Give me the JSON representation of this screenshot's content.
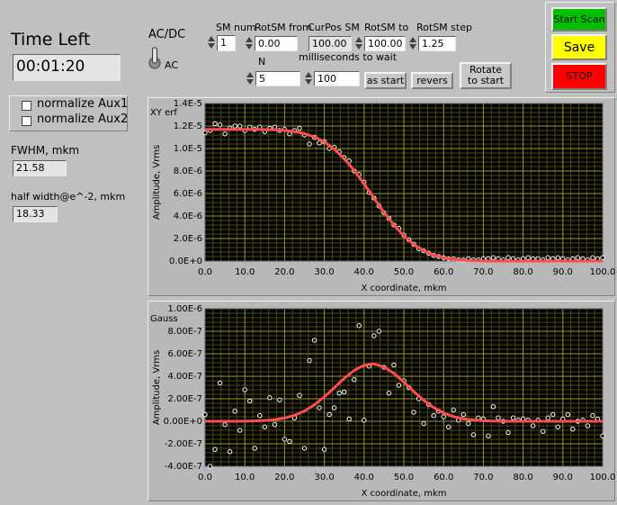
{
  "time_left": {
    "label": "Time Left",
    "value": "00:01:20"
  },
  "checkboxes": [
    {
      "label": "normalize Aux1",
      "checked": false
    },
    {
      "label": "normalize Aux2",
      "checked": false
    }
  ],
  "fwhm": {
    "label": "FWHM, mkm",
    "value": "21.58"
  },
  "half_width": {
    "label": "half width@e^-2, mkm",
    "value": "18.33"
  },
  "acdc": {
    "label": "AC/DC",
    "state": "AC"
  },
  "controls": {
    "sm_num": {
      "label": "SM num",
      "value": "1"
    },
    "rotsm_from": {
      "label": "RotSM from",
      "value": "0.00"
    },
    "curpos_sm": {
      "label": "CurPos SM",
      "value": "100.00"
    },
    "rotsm_to": {
      "label": "RotSM to",
      "value": "100.00"
    },
    "rotsm_step": {
      "label": "RotSM step",
      "value": "1.25"
    },
    "n": {
      "label": "N",
      "value": "5"
    },
    "ms_wait": {
      "label": "milliseconds to wait",
      "value": "100"
    }
  },
  "buttons": {
    "as_start": "as start",
    "revers": "revers",
    "rotate": "Rotate to start"
  },
  "run_buttons": [
    {
      "label": "Start Scan",
      "color": "#00c000"
    },
    {
      "label": "Save",
      "color": "#ffff00"
    },
    {
      "label": "STOP",
      "color": "#ff0000"
    }
  ],
  "chart_data": [
    {
      "type": "scatter",
      "title": "XY erf",
      "xlabel": "X coordinate, mkm",
      "ylabel": "Amplitude, Vrms",
      "xlim": [
        0,
        100
      ],
      "ylim": [
        0,
        1.4e-05
      ],
      "grid": true,
      "minor_grid": 5,
      "xticks": [
        {
          "value": 0,
          "label": "0.0"
        },
        {
          "value": 10,
          "label": "10.0"
        },
        {
          "value": 20,
          "label": "20.0"
        },
        {
          "value": 30,
          "label": "30.0"
        },
        {
          "value": 40,
          "label": "40.0"
        },
        {
          "value": 50,
          "label": "50.0"
        },
        {
          "value": 60,
          "label": "60.0"
        },
        {
          "value": 70,
          "label": "70.0"
        },
        {
          "value": 80,
          "label": "80.0"
        },
        {
          "value": 90,
          "label": "90.0"
        },
        {
          "value": 100,
          "label": "100.0"
        }
      ],
      "yticks": [
        {
          "value": 0,
          "label": "0.0E+0"
        },
        {
          "value": 2e-06,
          "label": "2.0E-6"
        },
        {
          "value": 4e-06,
          "label": "4.0E-6"
        },
        {
          "value": 6e-06,
          "label": "6.0E-6"
        },
        {
          "value": 8e-06,
          "label": "8.0E-6"
        },
        {
          "value": 1e-05,
          "label": "1.0E-5"
        },
        {
          "value": 1.2e-05,
          "label": "1.2E-5"
        },
        {
          "value": 1.4e-05,
          "label": "1.4E-5"
        }
      ],
      "series": [
        {
          "type": "scatter",
          "color": "#ffffff",
          "x": [
            0,
            1.25,
            2.5,
            3.75,
            5,
            6.25,
            7.5,
            8.75,
            10,
            11.25,
            12.5,
            13.75,
            15,
            16.25,
            17.5,
            18.75,
            20,
            21.25,
            22.5,
            23.75,
            25,
            26.25,
            27.5,
            28.75,
            30,
            31.25,
            32.5,
            33.75,
            35,
            36.25,
            37.5,
            38.75,
            40,
            41.25,
            42.5,
            43.75,
            45,
            46.25,
            47.5,
            48.75,
            50,
            51.25,
            52.5,
            53.75,
            55,
            56.25,
            57.5,
            58.75,
            60,
            61.25,
            62.5,
            63.75,
            65,
            66.25,
            67.5,
            68.75,
            70,
            71.25,
            72.5,
            73.75,
            75,
            76.25,
            77.5,
            78.75,
            80,
            81.25,
            82.5,
            83.75,
            85,
            86.25,
            87.5,
            88.75,
            90,
            91.25,
            92.5,
            93.75,
            95,
            96.25,
            97.5,
            98.75,
            100
          ],
          "values": [
            1.14e-05,
            1.16e-05,
            1.22e-05,
            1.21e-05,
            1.13e-05,
            1.18e-05,
            1.2e-05,
            1.2e-05,
            1.16e-05,
            1.19e-05,
            1.17e-05,
            1.19e-05,
            1.15e-05,
            1.18e-05,
            1.19e-05,
            1.16e-05,
            1.17e-05,
            1.13e-05,
            1.16e-05,
            1.18e-05,
            1.12e-05,
            1.04e-05,
            1.1e-05,
            1.05e-05,
            1.06e-05,
            1e-05,
            1.01e-05,
            9.7e-06,
            9.2e-06,
            8.9e-06,
            8e-06,
            7.7e-06,
            7e-06,
            6.1e-06,
            5.6e-06,
            4.9e-06,
            4.3e-06,
            3.8e-06,
            3.2e-06,
            2.9e-06,
            2.3e-06,
            1.9e-06,
            1.5e-06,
            1.1e-06,
            9e-07,
            7e-07,
            5e-07,
            4e-07,
            3e-07,
            2e-07,
            2e-07,
            1e-07,
            1e-07,
            2e-07,
            1e-07,
            1e-07,
            2e-07,
            2e-07,
            3e-07,
            2e-07,
            1e-07,
            3e-07,
            2e-07,
            1e-07,
            2e-07,
            3e-07,
            2e-07,
            2e-07,
            1e-07,
            3e-07,
            2e-07,
            3e-07,
            2e-07,
            1e-07,
            2e-07,
            3e-07,
            2e-07,
            1e-07,
            3e-07,
            2e-07,
            3e-07
          ]
        },
        {
          "type": "line",
          "color": "#ff4d4d",
          "x": [
            0,
            2.5,
            5,
            7.5,
            10,
            12.5,
            15,
            17.5,
            20,
            22.5,
            25,
            27.5,
            30,
            32.5,
            35,
            37.5,
            40,
            42.5,
            45,
            47.5,
            50,
            52.5,
            55,
            57.5,
            60,
            62.5,
            65,
            67.5,
            70,
            72.5,
            75,
            77.5,
            80,
            82.5,
            85,
            87.5,
            90,
            92.5,
            95,
            97.5,
            100
          ],
          "values": [
            1.17e-05,
            1.17e-05,
            1.17e-05,
            1.17e-05,
            1.17e-05,
            1.169e-05,
            1.168e-05,
            1.166e-05,
            1.16e-05,
            1.151e-05,
            1.133e-05,
            1.104e-05,
            1.059e-05,
            9.95e-06,
            9.1e-06,
            8.05e-06,
            6.86e-06,
            5.59e-06,
            4.35e-06,
            3.21e-06,
            2.24e-06,
            1.47e-06,
            9.1e-07,
            5.3e-07,
            2.9e-07,
            1.5e-07,
            7e-08,
            3e-08,
            1e-08,
            0,
            0,
            0,
            0,
            0,
            0,
            0,
            0,
            0,
            0,
            0,
            0
          ]
        }
      ]
    },
    {
      "type": "scatter",
      "title": "Gauss",
      "xlabel": "X coordinate, mkm",
      "ylabel": "Amplitude, Vrms",
      "xlim": [
        0,
        100
      ],
      "ylim": [
        -4e-07,
        1e-06
      ],
      "grid": true,
      "minor_grid": 5,
      "xticks": [
        {
          "value": 0,
          "label": "0.0"
        },
        {
          "value": 10,
          "label": "10.0"
        },
        {
          "value": 20,
          "label": "20.0"
        },
        {
          "value": 30,
          "label": "30.0"
        },
        {
          "value": 40,
          "label": "40.0"
        },
        {
          "value": 50,
          "label": "50.0"
        },
        {
          "value": 60,
          "label": "60.0"
        },
        {
          "value": 70,
          "label": "70.0"
        },
        {
          "value": 80,
          "label": "80.0"
        },
        {
          "value": 90,
          "label": "90.0"
        },
        {
          "value": 100,
          "label": "100.0"
        }
      ],
      "yticks": [
        {
          "value": -4e-07,
          "label": "-4.00E-7"
        },
        {
          "value": -2e-07,
          "label": "-2.00E-7"
        },
        {
          "value": 0,
          "label": "0.00E+0"
        },
        {
          "value": 2e-07,
          "label": "2.00E-7"
        },
        {
          "value": 4e-07,
          "label": "4.00E-7"
        },
        {
          "value": 6e-07,
          "label": "6.00E-7"
        },
        {
          "value": 8e-07,
          "label": "8.00E-7"
        },
        {
          "value": 1e-06,
          "label": "1.00E-6"
        }
      ],
      "series": [
        {
          "type": "scatter",
          "color": "#ffffff",
          "x": [
            0,
            1.25,
            2.5,
            3.75,
            5,
            6.25,
            7.5,
            8.75,
            10,
            11.25,
            12.5,
            13.75,
            15,
            16.25,
            17.5,
            18.75,
            20,
            21.25,
            22.5,
            23.75,
            25,
            26.25,
            27.5,
            28.75,
            30,
            31.25,
            32.5,
            33.75,
            35,
            36.25,
            37.5,
            38.75,
            40,
            41.25,
            42.5,
            43.75,
            45,
            46.25,
            47.5,
            48.75,
            50,
            51.25,
            52.5,
            53.75,
            55,
            56.25,
            57.5,
            58.75,
            60,
            61.25,
            62.5,
            63.75,
            65,
            66.25,
            67.5,
            68.75,
            70,
            71.25,
            72.5,
            73.75,
            75,
            76.25,
            77.5,
            78.75,
            80,
            81.25,
            82.5,
            83.75,
            85,
            86.25,
            87.5,
            88.75,
            90,
            91.25,
            92.5,
            93.75,
            95,
            96.25,
            97.5,
            98.75,
            100
          ],
          "values": [
            6e-08,
            -4e-07,
            -2.5e-07,
            3.4e-07,
            -3e-08,
            -2.7e-07,
            9e-08,
            -8e-08,
            2.8e-07,
            1.8e-07,
            -2.4e-07,
            5e-08,
            -5e-08,
            2.1e-07,
            -3e-08,
            1.9e-07,
            -1.6e-07,
            -1.8e-07,
            3e-08,
            2.3e-07,
            -2.4e-07,
            5.4e-07,
            7.2e-07,
            1.2e-07,
            -2.5e-07,
            6e-08,
            1.2e-07,
            2.5e-07,
            2.6e-07,
            2e-08,
            3.7e-07,
            8.5e-07,
            1e-08,
            4.9e-07,
            7.6e-07,
            8e-07,
            4.8e-07,
            2.5e-07,
            5e-07,
            3.2e-07,
            3.6e-07,
            3e-07,
            8e-08,
            2e-07,
            -2e-08,
            1.5e-07,
            5e-08,
            9e-08,
            4e-08,
            -5e-08,
            1e-07,
            1e-08,
            6e-08,
            -2e-08,
            -1.2e-07,
            3e-08,
            2e-08,
            -1.3e-07,
            1.3e-07,
            3e-08,
            0,
            -1e-07,
            3e-08,
            1e-08,
            2e-08,
            1e-08,
            -4e-08,
            1e-08,
            -9e-08,
            3e-08,
            6e-08,
            -5e-08,
            2e-08,
            6e-08,
            -7e-08,
            0,
            1e-08,
            -4e-08,
            5e-08,
            2e-08,
            -1.3e-07
          ]
        },
        {
          "type": "line",
          "color": "#ff4d4d",
          "x": [
            0,
            2.5,
            5,
            7.5,
            10,
            12.5,
            15,
            17.5,
            20,
            22.5,
            25,
            27.5,
            30,
            32.5,
            35,
            37.5,
            40,
            42.5,
            45,
            47.5,
            50,
            52.5,
            55,
            57.5,
            60,
            62.5,
            65,
            67.5,
            70,
            72.5,
            75,
            77.5,
            80,
            82.5,
            85,
            87.5,
            90,
            92.5,
            95,
            97.5,
            100
          ],
          "values": [
            0,
            0,
            0,
            0,
            1e-09,
            3e-09,
            7e-09,
            1.4e-08,
            2.9e-08,
            5.3e-08,
            9.1e-08,
            1.46e-07,
            2.17e-07,
            2.98e-07,
            3.81e-07,
            4.52e-07,
            4.98e-07,
            5.1e-07,
            4.83e-07,
            4.26e-07,
            3.49e-07,
            2.65e-07,
            1.87e-07,
            1.22e-07,
            7.4e-08,
            4.2e-08,
            2.2e-08,
            1.1e-08,
            5e-09,
            2e-09,
            1e-09,
            0,
            0,
            0,
            0,
            0,
            0,
            0,
            0,
            0,
            0
          ]
        }
      ]
    }
  ]
}
